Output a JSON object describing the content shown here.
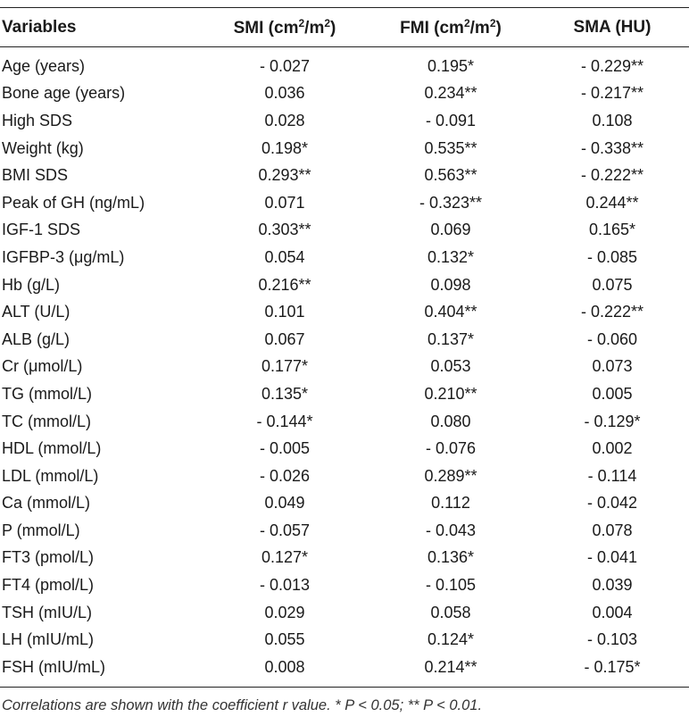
{
  "table": {
    "headers": {
      "variables": "Variables",
      "smi_prefix": "SMI (cm",
      "smi_sup1": "2",
      "smi_mid": "/m",
      "smi_sup2": "2",
      "smi_suffix": ")",
      "fmi_prefix": "FMI (cm",
      "fmi_sup1": "2",
      "fmi_mid": "/m",
      "fmi_sup2": "2",
      "fmi_suffix": ")",
      "sma": "SMA (HU)"
    },
    "rows": [
      {
        "label": "Age (years)",
        "smi": "- 0.027",
        "fmi": "0.195*",
        "sma": "- 0.229**"
      },
      {
        "label": "Bone age (years)",
        "smi": "0.036",
        "fmi": "0.234**",
        "sma": "- 0.217**"
      },
      {
        "label": "High SDS",
        "smi": "0.028",
        "fmi": "- 0.091",
        "sma": "0.108"
      },
      {
        "label": "Weight (kg)",
        "smi": "0.198*",
        "fmi": "0.535**",
        "sma": "- 0.338**"
      },
      {
        "label": "BMI SDS",
        "smi": "0.293**",
        "fmi": "0.563**",
        "sma": "- 0.222**"
      },
      {
        "label": "Peak of GH (ng/mL)",
        "smi": "0.071",
        "fmi": "- 0.323**",
        "sma": "0.244**"
      },
      {
        "label": "IGF-1 SDS",
        "smi": "0.303**",
        "fmi": "0.069",
        "sma": "0.165*"
      },
      {
        "label": "IGFBP-3 (μg/mL)",
        "smi": "0.054",
        "fmi": "0.132*",
        "sma": "- 0.085"
      },
      {
        "label": "Hb (g/L)",
        "smi": "0.216**",
        "fmi": "0.098",
        "sma": "0.075"
      },
      {
        "label": "ALT (U/L)",
        "smi": "0.101",
        "fmi": "0.404**",
        "sma": "- 0.222**"
      },
      {
        "label": "ALB (g/L)",
        "smi": "0.067",
        "fmi": "0.137*",
        "sma": "- 0.060"
      },
      {
        "label": "Cr (μmol/L)",
        "smi": "0.177*",
        "fmi": "0.053",
        "sma": "0.073"
      },
      {
        "label": "TG (mmol/L)",
        "smi": "0.135*",
        "fmi": "0.210**",
        "sma": "0.005"
      },
      {
        "label": "TC (mmol/L)",
        "smi": "- 0.144*",
        "fmi": "0.080",
        "sma": "- 0.129*"
      },
      {
        "label": "HDL (mmol/L)",
        "smi": "- 0.005",
        "fmi": "- 0.076",
        "sma": "0.002"
      },
      {
        "label": "LDL (mmol/L)",
        "smi": "- 0.026",
        "fmi": "0.289**",
        "sma": "- 0.114"
      },
      {
        "label": "Ca (mmol/L)",
        "smi": "0.049",
        "fmi": "0.112",
        "sma": "- 0.042"
      },
      {
        "label": "P (mmol/L)",
        "smi": "- 0.057",
        "fmi": "- 0.043",
        "sma": "0.078"
      },
      {
        "label": "FT3 (pmol/L)",
        "smi": "0.127*",
        "fmi": "0.136*",
        "sma": "- 0.041"
      },
      {
        "label": "FT4 (pmol/L)",
        "smi": "- 0.013",
        "fmi": "- 0.105",
        "sma": "0.039"
      },
      {
        "label": "TSH (mIU/L)",
        "smi": "0.029",
        "fmi": "0.058",
        "sma": "0.004"
      },
      {
        "label": "LH (mIU/mL)",
        "smi": "0.055",
        "fmi": "0.124*",
        "sma": "- 0.103"
      },
      {
        "label": "FSH (mIU/mL)",
        "smi": "0.008",
        "fmi": "0.214**",
        "sma": "- 0.175*"
      }
    ]
  },
  "footnote": "Correlations are shown with the coefficient r value. * P < 0.05; ** P < 0.01."
}
